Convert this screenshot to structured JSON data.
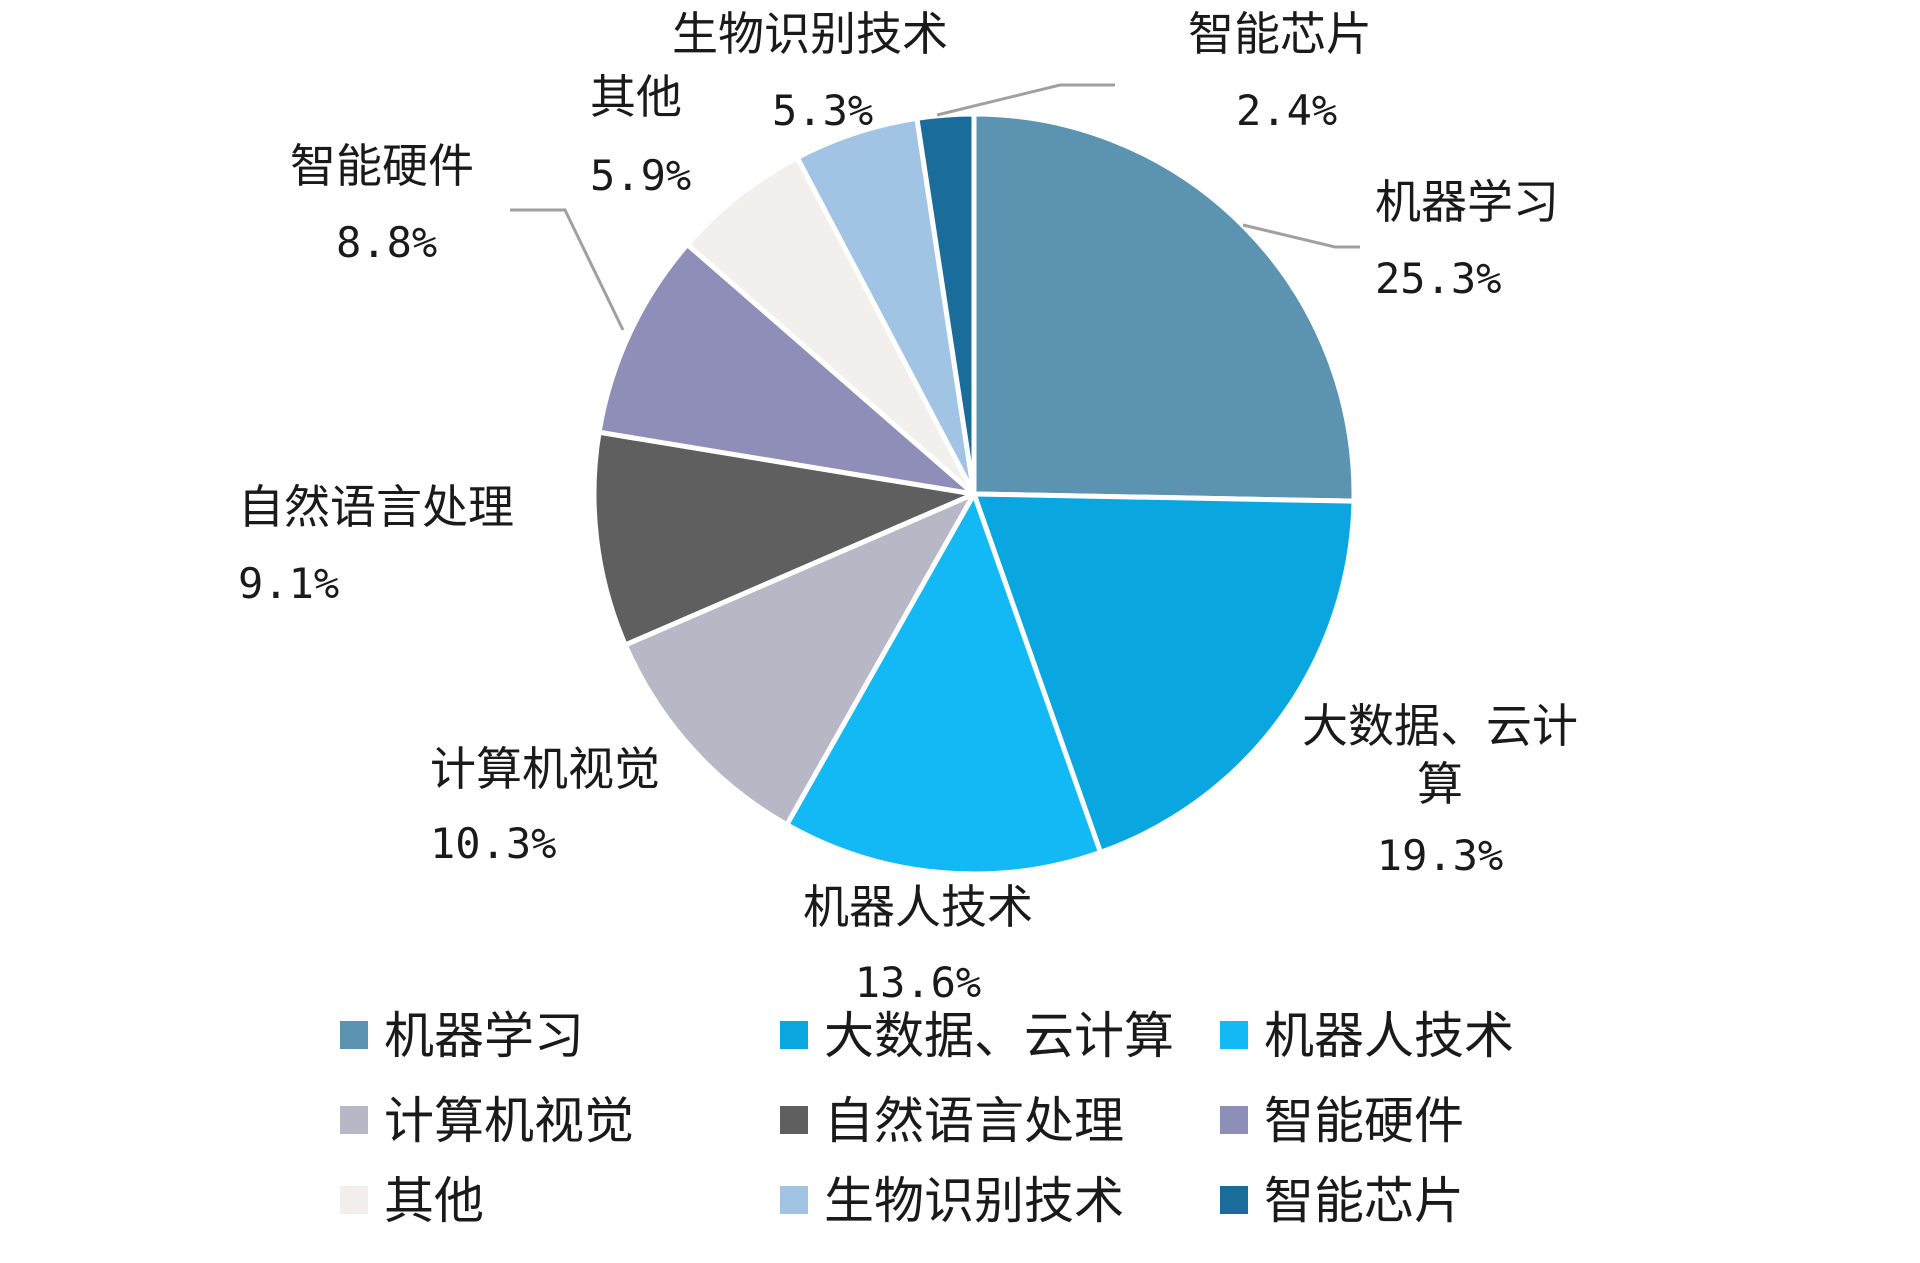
{
  "chart_data": {
    "type": "pie",
    "categories": [
      "机器学习",
      "大数据、云计算",
      "机器人技术",
      "计算机视觉",
      "自然语言处理",
      "智能硬件",
      "其他",
      "生物识别技术",
      "智能芯片"
    ],
    "values": [
      25.3,
      19.3,
      13.6,
      10.3,
      9.1,
      8.8,
      5.9,
      5.3,
      2.4
    ],
    "value_labels": [
      "25.3%",
      "19.3%",
      "13.6%",
      "10.3%",
      "9.1%",
      "8.8%",
      "5.9%",
      "5.3%",
      "2.4%"
    ],
    "colors": [
      "#5b93b0",
      "#0aa6df",
      "#12b9f5",
      "#b7b7c5",
      "#5f5f5f",
      "#8e8eb8",
      "#f2efed",
      "#a2c4e4",
      "#1a6c9b"
    ],
    "start_angle_deg": 0,
    "direction": "clockwise",
    "legend": {
      "position": "bottom",
      "items": [
        "机器学习",
        "大数据、云计算",
        "机器人技术",
        "计算机视觉",
        "自然语言处理",
        "智能硬件",
        "其他",
        "生物识别技术",
        "智能芯片"
      ]
    }
  }
}
